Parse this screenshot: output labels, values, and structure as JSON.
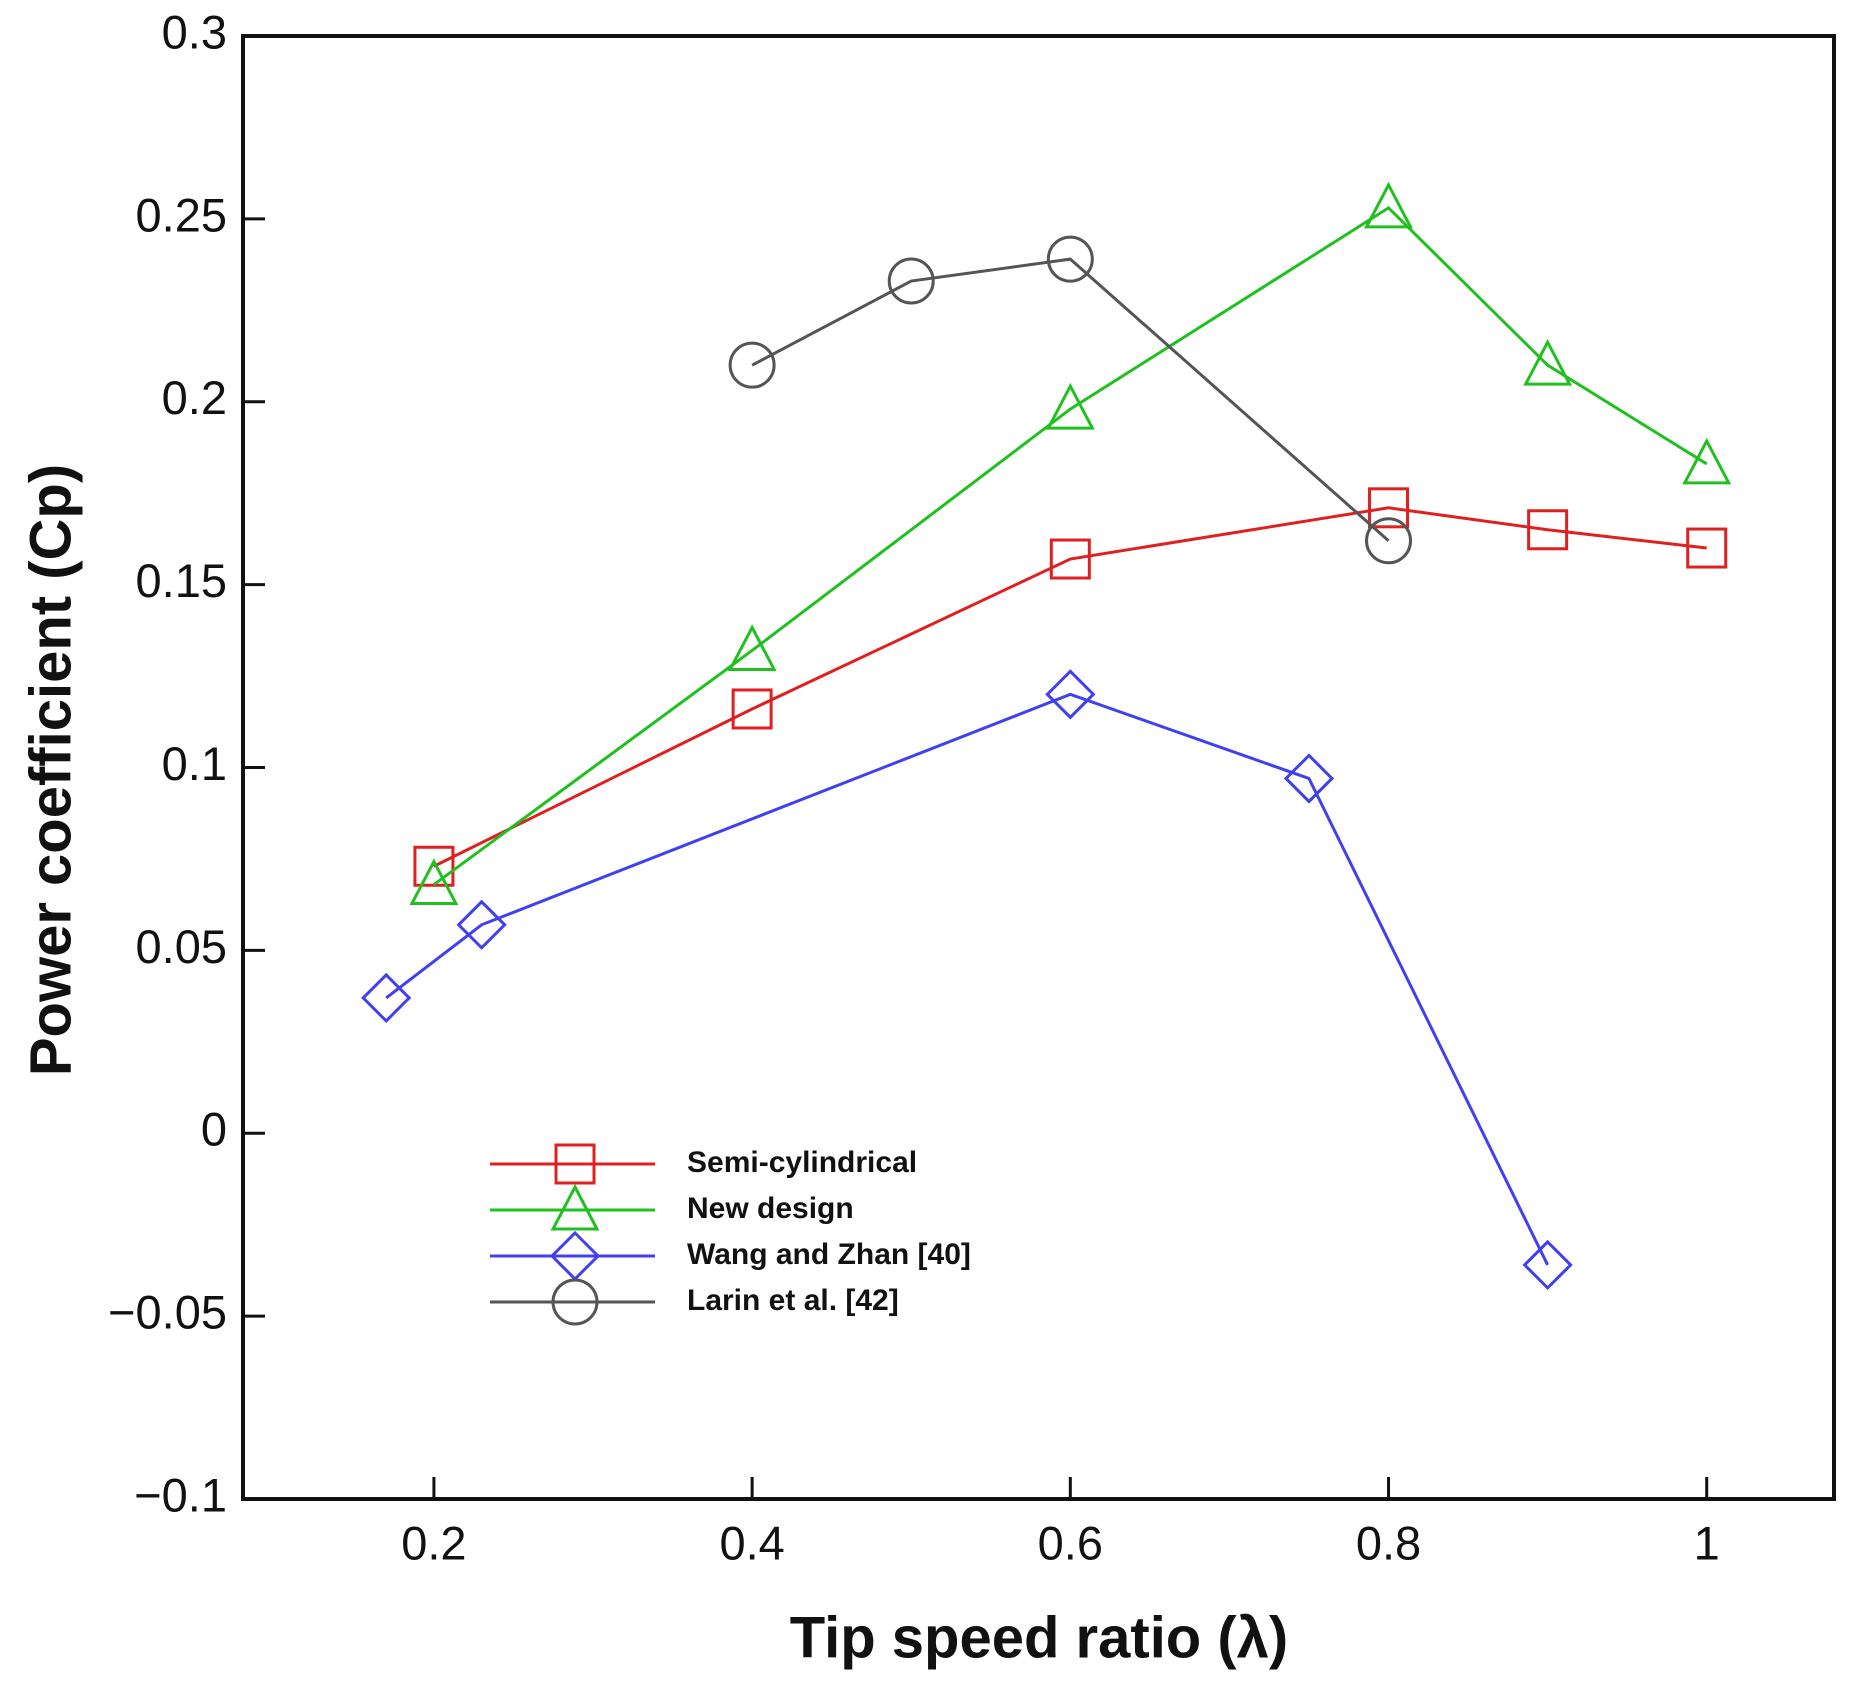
{
  "chart_data": {
    "type": "line",
    "xlabel": "Tip speed ratio (λ)",
    "ylabel": "Power coefficient (Cp)",
    "xlim": [
      0.08,
      1.08
    ],
    "xticks": [
      {
        "value": 0.2,
        "label": "0.2"
      },
      {
        "value": 0.4,
        "label": "0.4"
      },
      {
        "value": 0.6,
        "label": "0.6"
      },
      {
        "value": 0.8,
        "label": "0.8"
      },
      1
    ],
    "ylim": [
      -0.1,
      0.3
    ],
    "yticks": [
      {
        "value": -0.1,
        "label": "−0.1"
      },
      {
        "value": -0.05,
        "label": "−0.05"
      },
      0,
      0.05,
      0.1,
      0.15,
      0.2,
      0.25,
      0.3
    ],
    "legend": "lower left",
    "series": [
      {
        "name": "Semi-cylindrical",
        "color": "#e02020",
        "marker": "square",
        "x": [
          0.2,
          0.4,
          0.6,
          0.8,
          0.9,
          1.0
        ],
        "values": [
          0.073,
          0.116,
          0.157,
          0.171,
          0.165,
          0.16
        ]
      },
      {
        "name": "New design",
        "color": "#20c020",
        "marker": "triangle",
        "x": [
          0.2,
          0.4,
          0.6,
          0.8,
          0.9,
          1.0
        ],
        "values": [
          0.068,
          0.132,
          0.198,
          0.253,
          0.21,
          0.183
        ]
      },
      {
        "name": "Wang and Zhan [40]",
        "color": "#4040f0",
        "marker": "diamond",
        "x": [
          0.17,
          0.23,
          0.6,
          0.75,
          0.9
        ],
        "values": [
          0.037,
          0.057,
          0.12,
          0.097,
          -0.036
        ]
      },
      {
        "name": "Larin et al. [42]",
        "color": "#555555",
        "marker": "circle",
        "x": [
          0.4,
          0.5,
          0.6,
          0.8
        ],
        "values": [
          0.21,
          0.233,
          0.239,
          0.162
        ]
      }
    ]
  }
}
